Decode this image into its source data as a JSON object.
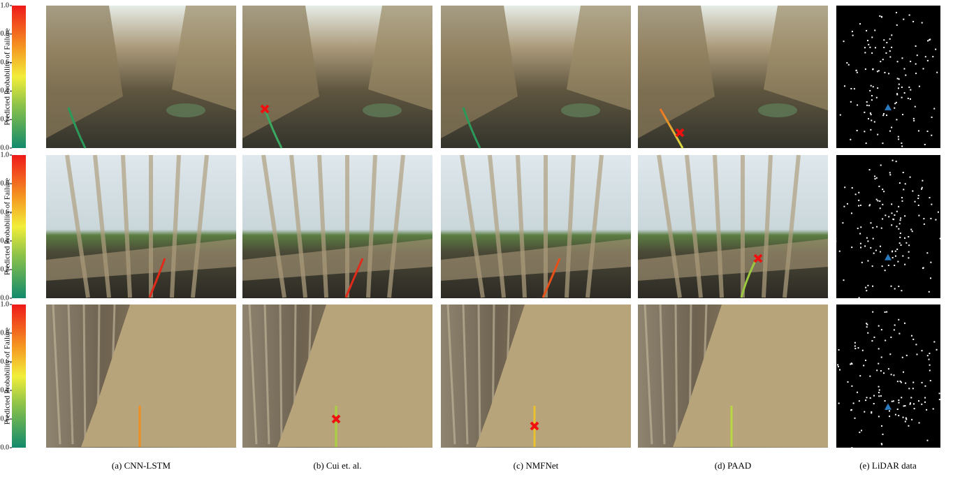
{
  "colorbar": {
    "label": "Predicted Probability of Failure",
    "ticks": [
      {
        "value": 0,
        "label": "0.0"
      },
      {
        "value": 0.2,
        "label": "0.2"
      },
      {
        "value": 0.4,
        "label": "0.4"
      },
      {
        "value": 0.6,
        "label": "0.6"
      },
      {
        "value": 0.8,
        "label": "0.8"
      },
      {
        "value": 1,
        "label": "1.0"
      }
    ]
  },
  "captions": [
    "(a) CNN-LSTM",
    "(b) Cui et. al.",
    "(c) NMFNet",
    "(d) PAAD",
    "(e) LiDAR data"
  ]
}
